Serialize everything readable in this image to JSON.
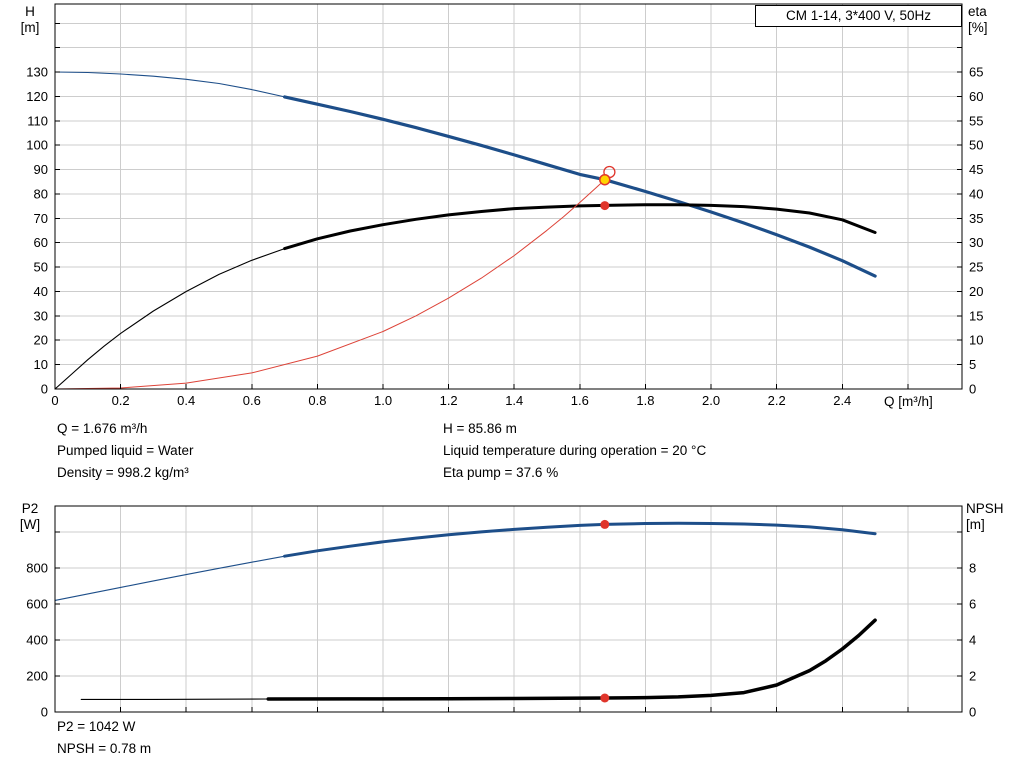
{
  "info": {
    "q": "Q = 1.676 m³/h",
    "h": "H = 85.86 m",
    "pumped_liquid": "Pumped liquid = Water",
    "liquid_temp": "Liquid temperature during operation = 20 °C",
    "density": "Density = 998.2 kg/m³",
    "eta_pump": "Eta pump = 37.6 %",
    "p2": "P2 = 1042 W",
    "npsh": "NPSH = 0.78 m"
  },
  "colors": {
    "curve_blue": "#1d4e89",
    "curve_black": "#000000",
    "curve_red": "#dd4338",
    "marker_red": "#e0352b",
    "marker_yellow": "#ffd400",
    "grid": "#cdcdcd"
  },
  "chart_data": [
    {
      "type": "line",
      "title": "CM 1-14, 3*400 V, 50Hz",
      "x_axis": {
        "label": "Q [m³/h]",
        "min": 0,
        "max": 2.765,
        "tick_step": 0.2,
        "label_max": 2.4,
        "curve_max": 2.5
      },
      "y_left": {
        "label": "H",
        "unit": "[m]",
        "min": 0,
        "max": 157.9,
        "tick_step": 10,
        "label_max": 130
      },
      "y_right": {
        "label": "eta",
        "unit": "[%]",
        "min": 0,
        "max": 78.95,
        "tick_step": 5,
        "label_max": 65
      },
      "grid": true,
      "series": [
        {
          "name": "pump-head-curve",
          "axis": "left",
          "color": "#1d4e89",
          "segments": [
            {
              "width": 1.1,
              "points": [
                [
                  0,
                  130
                ],
                [
                  0.1,
                  129.8
                ],
                [
                  0.2,
                  129.2
                ],
                [
                  0.3,
                  128.3
                ],
                [
                  0.4,
                  127
                ],
                [
                  0.5,
                  125.3
                ],
                [
                  0.6,
                  122.8
                ],
                [
                  0.7,
                  119.8
                ]
              ]
            },
            {
              "width": 3.2,
              "points": [
                [
                  0.7,
                  119.8
                ],
                [
                  0.8,
                  116.8
                ],
                [
                  0.9,
                  113.8
                ],
                [
                  1.0,
                  110.6
                ],
                [
                  1.1,
                  107.2
                ],
                [
                  1.2,
                  103.6
                ],
                [
                  1.3,
                  99.9
                ],
                [
                  1.4,
                  96
                ],
                [
                  1.5,
                  92
                ],
                [
                  1.6,
                  88
                ],
                [
                  1.676,
                  85.86
                ],
                [
                  1.8,
                  81
                ],
                [
                  1.9,
                  76.9
                ],
                [
                  2.0,
                  72.6
                ],
                [
                  2.1,
                  68.1
                ],
                [
                  2.2,
                  63.3
                ],
                [
                  2.3,
                  58.2
                ],
                [
                  2.4,
                  52.6
                ],
                [
                  2.5,
                  46.3
                ]
              ]
            }
          ]
        },
        {
          "name": "efficiency-curve",
          "axis": "right",
          "color": "#000000",
          "segments": [
            {
              "width": 1.1,
              "points": [
                [
                  0,
                  0
                ],
                [
                  0.05,
                  3
                ],
                [
                  0.1,
                  6
                ],
                [
                  0.15,
                  8.8
                ],
                [
                  0.2,
                  11.4
                ],
                [
                  0.3,
                  16
                ],
                [
                  0.4,
                  20
                ],
                [
                  0.5,
                  23.5
                ],
                [
                  0.6,
                  26.4
                ],
                [
                  0.7,
                  28.8
                ]
              ]
            },
            {
              "width": 3.0,
              "points": [
                [
                  0.7,
                  28.8
                ],
                [
                  0.8,
                  30.8
                ],
                [
                  0.9,
                  32.4
                ],
                [
                  1.0,
                  33.7
                ],
                [
                  1.1,
                  34.8
                ],
                [
                  1.2,
                  35.7
                ],
                [
                  1.3,
                  36.4
                ],
                [
                  1.4,
                  37
                ],
                [
                  1.5,
                  37.3
                ],
                [
                  1.6,
                  37.55
                ],
                [
                  1.7,
                  37.7
                ],
                [
                  1.8,
                  37.8
                ],
                [
                  1.9,
                  37.8
                ],
                [
                  2.0,
                  37.65
                ],
                [
                  2.1,
                  37.4
                ],
                [
                  2.2,
                  36.9
                ],
                [
                  2.3,
                  36.1
                ],
                [
                  2.4,
                  34.7
                ],
                [
                  2.5,
                  32.1
                ]
              ]
            }
          ]
        },
        {
          "name": "system-curve",
          "axis": "left",
          "color": "#dd4338",
          "segments": [
            {
              "width": 1.0,
              "points": [
                [
                  0,
                  0
                ],
                [
                  0.2,
                  0.4
                ],
                [
                  0.4,
                  2.4
                ],
                [
                  0.6,
                  6.6
                ],
                [
                  0.8,
                  13.5
                ],
                [
                  1.0,
                  23.6
                ],
                [
                  1.1,
                  30.0
                ],
                [
                  1.2,
                  37.3
                ],
                [
                  1.3,
                  45.5
                ],
                [
                  1.4,
                  54.7
                ],
                [
                  1.5,
                  65.1
                ],
                [
                  1.55,
                  70.6
                ],
                [
                  1.6,
                  76.5
                ],
                [
                  1.65,
                  82.6
                ],
                [
                  1.676,
                  85.86
                ]
              ]
            }
          ]
        }
      ],
      "markers": [
        {
          "name": "requested-duty-point",
          "shape": "open-circle",
          "axis": "left",
          "x": 1.69,
          "y": 89.0,
          "r": 5.5,
          "fill": "none",
          "stroke": "#e0352b",
          "sw": 1.3
        },
        {
          "name": "actual-duty-point",
          "shape": "circle",
          "axis": "left",
          "x": 1.676,
          "y": 85.86,
          "r": 5,
          "fill": "#ffd400",
          "stroke": "#e0352b",
          "sw": 1.5
        },
        {
          "name": "eta-duty-point",
          "shape": "circle",
          "axis": "right",
          "x": 1.676,
          "y": 37.6,
          "r": 4.5,
          "fill": "#e0352b",
          "stroke": "none",
          "sw": 0
        }
      ]
    },
    {
      "type": "line",
      "title": "",
      "x_axis": {
        "label": "",
        "min": 0,
        "max": 2.765,
        "tick_step": 0.2,
        "label_max": -1,
        "curve_max": 2.5
      },
      "y_left": {
        "label": "P2",
        "unit": "[W]",
        "min": 0,
        "max": 1144,
        "tick_step": 200,
        "label_max": 800
      },
      "y_right": {
        "label": "NPSH",
        "unit": "[m]",
        "min": 0,
        "max": 11.44,
        "tick_step": 2,
        "label_max": 8
      },
      "grid": true,
      "series": [
        {
          "name": "p2-curve",
          "axis": "left",
          "color": "#1d4e89",
          "segments": [
            {
              "width": 1.1,
              "points": [
                [
                  0,
                  620
                ],
                [
                  0.1,
                  656
                ],
                [
                  0.2,
                  692
                ],
                [
                  0.3,
                  728
                ],
                [
                  0.4,
                  763
                ],
                [
                  0.5,
                  798
                ],
                [
                  0.6,
                  832
                ],
                [
                  0.7,
                  865
                ]
              ]
            },
            {
              "width": 3.0,
              "points": [
                [
                  0.7,
                  865
                ],
                [
                  0.8,
                  895
                ],
                [
                  0.9,
                  921
                ],
                [
                  1.0,
                  945
                ],
                [
                  1.1,
                  966
                ],
                [
                  1.2,
                  984
                ],
                [
                  1.3,
                  1000
                ],
                [
                  1.4,
                  1014
                ],
                [
                  1.5,
                  1026
                ],
                [
                  1.6,
                  1036
                ],
                [
                  1.676,
                  1042
                ],
                [
                  1.8,
                  1047
                ],
                [
                  1.9,
                  1048
                ],
                [
                  2.0,
                  1047
                ],
                [
                  2.1,
                  1044
                ],
                [
                  2.2,
                  1038
                ],
                [
                  2.3,
                  1028
                ],
                [
                  2.4,
                  1012
                ],
                [
                  2.5,
                  990
                ]
              ]
            }
          ]
        },
        {
          "name": "npsh-curve",
          "axis": "right",
          "color": "#000000",
          "segments": [
            {
              "width": 1.1,
              "points": [
                [
                  0.08,
                  0.7
                ],
                [
                  0.3,
                  0.7
                ],
                [
                  0.5,
                  0.71
                ],
                [
                  0.65,
                  0.72
                ]
              ]
            },
            {
              "width": 3.5,
              "points": [
                [
                  0.65,
                  0.72
                ],
                [
                  0.9,
                  0.73
                ],
                [
                  1.2,
                  0.74
                ],
                [
                  1.4,
                  0.75
                ],
                [
                  1.676,
                  0.78
                ],
                [
                  1.8,
                  0.8
                ],
                [
                  1.9,
                  0.84
                ],
                [
                  2.0,
                  0.92
                ],
                [
                  2.1,
                  1.08
                ],
                [
                  2.2,
                  1.5
                ],
                [
                  2.3,
                  2.3
                ],
                [
                  2.35,
                  2.85
                ],
                [
                  2.4,
                  3.5
                ],
                [
                  2.45,
                  4.25
                ],
                [
                  2.5,
                  5.1
                ]
              ]
            }
          ]
        }
      ],
      "markers": [
        {
          "name": "p2-duty-point",
          "shape": "circle",
          "axis": "left",
          "x": 1.676,
          "y": 1042,
          "r": 4.5,
          "fill": "#e0352b",
          "stroke": "none",
          "sw": 0
        },
        {
          "name": "npsh-duty-point",
          "shape": "circle",
          "axis": "right",
          "x": 1.676,
          "y": 0.78,
          "r": 4.5,
          "fill": "#e0352b",
          "stroke": "none",
          "sw": 0
        }
      ]
    }
  ]
}
